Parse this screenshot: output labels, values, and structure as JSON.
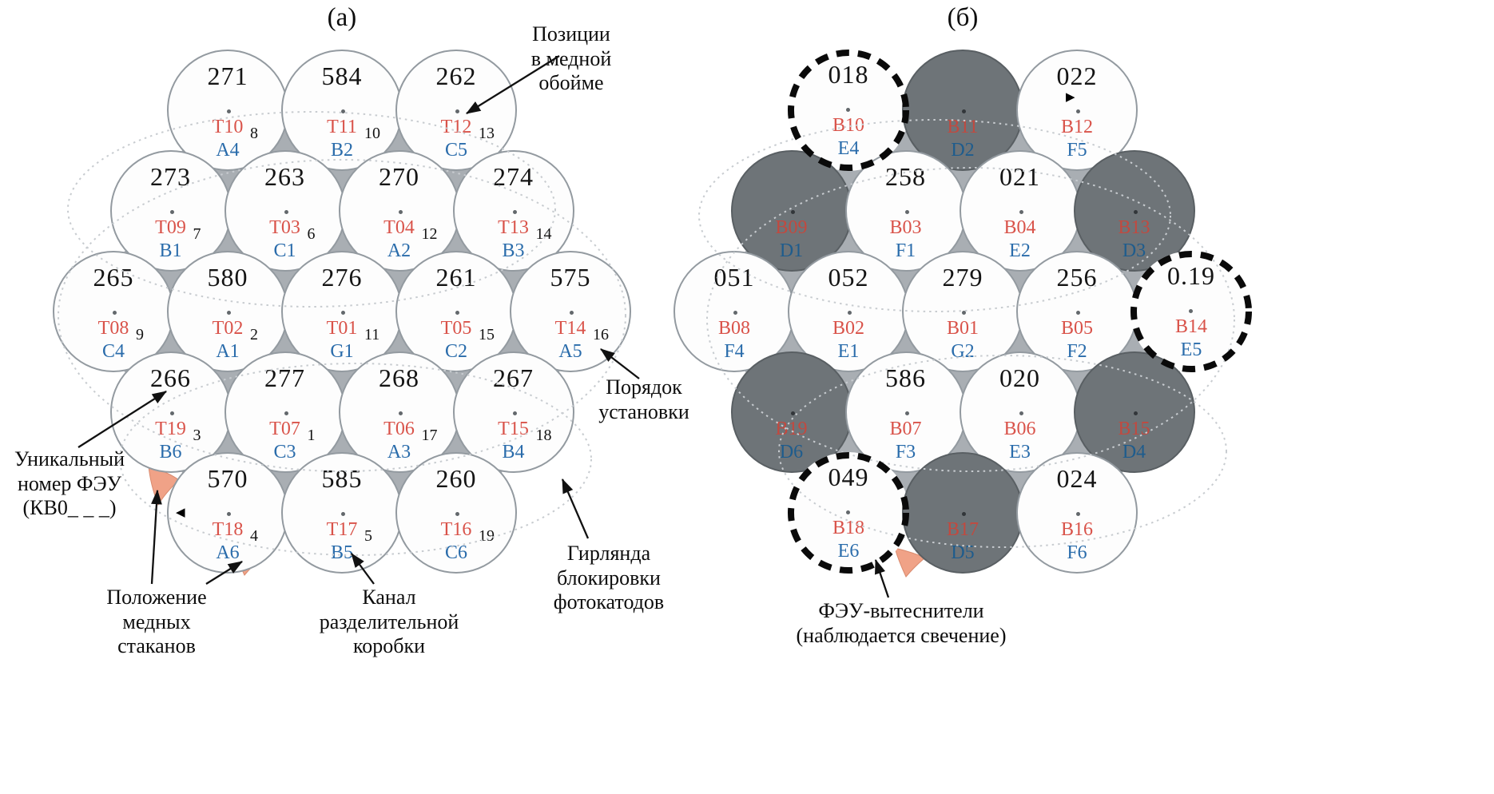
{
  "titles": {
    "a": "(а)",
    "b": "(б)"
  },
  "annotations": {
    "copper_positions": "Позиции\nв медной\nобойме",
    "install_order": "Порядок\nустановки",
    "unique_number": "Уникальный\nномер ФЭУ\n(КВ0_ _ _)",
    "copper_cups": "Положение\nмедных\nстаканов",
    "junction_channel": "Канал\nразделительной\nкоробки",
    "blocking_garland": "Гирлянда\nблокировки\nфотокатодов",
    "displacers": "ФЭУ-вытеснители\n(наблюдается свечение)"
  },
  "colors": {
    "red_label": "#d9534a",
    "blue_label": "#2a6cab",
    "holder_gray": "#a9aeb3",
    "dark_pmt": "#6e7478",
    "copper_cup": "#f0a287"
  },
  "panels": [
    {
      "id": "a",
      "cells": [
        {
          "row": 0,
          "col": 0,
          "num": "271",
          "red": "T10",
          "blue": "A4",
          "order": "8",
          "variant": "white"
        },
        {
          "row": 0,
          "col": 1,
          "num": "584",
          "red": "T11",
          "blue": "B2",
          "order": "10",
          "variant": "white"
        },
        {
          "row": 0,
          "col": 2,
          "num": "262",
          "red": "T12",
          "blue": "C5",
          "order": "13",
          "variant": "white"
        },
        {
          "row": 1,
          "col": 0,
          "num": "273",
          "red": "T09",
          "blue": "B1",
          "order": "7",
          "variant": "white"
        },
        {
          "row": 1,
          "col": 1,
          "num": "263",
          "red": "T03",
          "blue": "C1",
          "order": "6",
          "variant": "white"
        },
        {
          "row": 1,
          "col": 2,
          "num": "270",
          "red": "T04",
          "blue": "A2",
          "order": "12",
          "variant": "white"
        },
        {
          "row": 1,
          "col": 3,
          "num": "274",
          "red": "T13",
          "blue": "B3",
          "order": "14",
          "variant": "white"
        },
        {
          "row": 2,
          "col": 0,
          "num": "265",
          "red": "T08",
          "blue": "C4",
          "order": "9",
          "variant": "white"
        },
        {
          "row": 2,
          "col": 1,
          "num": "580",
          "red": "T02",
          "blue": "A1",
          "order": "2",
          "variant": "white"
        },
        {
          "row": 2,
          "col": 2,
          "num": "276",
          "red": "T01",
          "blue": "G1",
          "order": "11",
          "variant": "white"
        },
        {
          "row": 2,
          "col": 3,
          "num": "261",
          "red": "T05",
          "blue": "C2",
          "order": "15",
          "variant": "white"
        },
        {
          "row": 2,
          "col": 4,
          "num": "575",
          "red": "T14",
          "blue": "A5",
          "order": "16",
          "variant": "white"
        },
        {
          "row": 3,
          "col": 0,
          "num": "266",
          "red": "T19",
          "blue": "B6",
          "order": "3",
          "variant": "white"
        },
        {
          "row": 3,
          "col": 1,
          "num": "277",
          "red": "T07",
          "blue": "C3",
          "order": "1",
          "variant": "white"
        },
        {
          "row": 3,
          "col": 2,
          "num": "268",
          "red": "T06",
          "blue": "A3",
          "order": "17",
          "variant": "white"
        },
        {
          "row": 3,
          "col": 3,
          "num": "267",
          "red": "T15",
          "blue": "B4",
          "order": "18",
          "variant": "white"
        },
        {
          "row": 4,
          "col": 0,
          "num": "570",
          "red": "T18",
          "blue": "A6",
          "order": "4",
          "variant": "white",
          "marker": "left"
        },
        {
          "row": 4,
          "col": 1,
          "num": "585",
          "red": "T17",
          "blue": "B5",
          "order": "5",
          "variant": "white"
        },
        {
          "row": 4,
          "col": 2,
          "num": "260",
          "red": "T16",
          "blue": "C6",
          "order": "19",
          "variant": "white"
        }
      ]
    },
    {
      "id": "b",
      "cells": [
        {
          "row": 0,
          "col": 0,
          "num": "018",
          "red": "B10",
          "blue": "E4",
          "variant": "dashed"
        },
        {
          "row": 0,
          "col": 1,
          "num": "",
          "red": "B11",
          "blue": "D2",
          "variant": "dark"
        },
        {
          "row": 0,
          "col": 2,
          "num": "022",
          "red": "B12",
          "blue": "F5",
          "variant": "white",
          "marker": "right"
        },
        {
          "row": 1,
          "col": 0,
          "num": "",
          "red": "B09",
          "blue": "D1",
          "variant": "dark"
        },
        {
          "row": 1,
          "col": 1,
          "num": "258",
          "red": "B03",
          "blue": "F1",
          "variant": "white"
        },
        {
          "row": 1,
          "col": 2,
          "num": "021",
          "red": "B04",
          "blue": "E2",
          "variant": "white"
        },
        {
          "row": 1,
          "col": 3,
          "num": "",
          "red": "B13",
          "blue": "D3",
          "variant": "dark"
        },
        {
          "row": 2,
          "col": 0,
          "num": "051",
          "red": "B08",
          "blue": "F4",
          "variant": "white"
        },
        {
          "row": 2,
          "col": 1,
          "num": "052",
          "red": "B02",
          "blue": "E1",
          "variant": "white"
        },
        {
          "row": 2,
          "col": 2,
          "num": "279",
          "red": "B01",
          "blue": "G2",
          "variant": "white"
        },
        {
          "row": 2,
          "col": 3,
          "num": "256",
          "red": "B05",
          "blue": "F2",
          "variant": "white"
        },
        {
          "row": 2,
          "col": 4,
          "num": "0.19",
          "red": "B14",
          "blue": "E5",
          "variant": "dashed"
        },
        {
          "row": 3,
          "col": 0,
          "num": "",
          "red": "B19",
          "blue": "D6",
          "variant": "dark"
        },
        {
          "row": 3,
          "col": 1,
          "num": "586",
          "red": "B07",
          "blue": "F3",
          "variant": "white"
        },
        {
          "row": 3,
          "col": 2,
          "num": "020",
          "red": "B06",
          "blue": "E3",
          "variant": "white"
        },
        {
          "row": 3,
          "col": 3,
          "num": "",
          "red": "B15",
          "blue": "D4",
          "variant": "dark"
        },
        {
          "row": 4,
          "col": 0,
          "num": "049",
          "red": "B18",
          "blue": "E6",
          "variant": "dashed"
        },
        {
          "row": 4,
          "col": 1,
          "num": "",
          "red": "B17",
          "blue": "D5",
          "variant": "dark"
        },
        {
          "row": 4,
          "col": 2,
          "num": "024",
          "red": "B16",
          "blue": "F6",
          "variant": "white"
        }
      ]
    }
  ]
}
